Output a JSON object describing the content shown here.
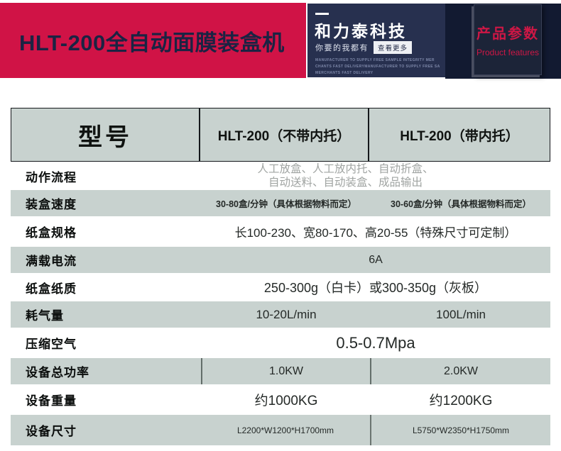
{
  "banner": {
    "title": "HLT-200全自动面膜装盒机",
    "brand": {
      "name": "和力泰科技",
      "tagline": "你要的我都有",
      "more_button": "查看更多",
      "fine_print": [
        "MANUFACTURER TO SUPPLY FREE SAMPLE INTEGRITY MER",
        "CHANTS FAST DELIVERYMANUFACTURER TO SUPPLY FREE SAMPLE INTEGRIT",
        "MERCHANTS FAST DELIVERY"
      ]
    },
    "badge": {
      "title": "产品参数",
      "subtitle": "Product features"
    }
  },
  "colors": {
    "accent_red": "#d01346",
    "navy_mid": "#27304f",
    "navy_dark": "#121a31",
    "table_gray": "#c8d2cf",
    "muted_text": "#a0a4a2"
  },
  "table": {
    "header": {
      "label": "型号",
      "col1": "HLT-200（不带内托）",
      "col2": "HLT-200（带内托）"
    },
    "rows": [
      {
        "label": "动作流程",
        "value_lines": [
          "人工放盒、人工放内托、自动折盒、",
          "自动送料、自动装盒、成品输出"
        ]
      },
      {
        "label": "装盒速度",
        "values": [
          "30-80盒/分钟（具体根据物料而定）",
          "30-60盒/分钟（具体根据物料而定）"
        ]
      },
      {
        "label": "纸盒规格",
        "span": "长100-230、宽80-170、高20-55（特殊尺寸可定制）"
      },
      {
        "label": "满载电流",
        "span": "6A"
      },
      {
        "label": "纸盒纸质",
        "span": "250-300g（白卡）或300-350g（灰板）"
      },
      {
        "label": "耗气量",
        "values": [
          "10-20L/min",
          "100L/min"
        ]
      },
      {
        "label": "压缩空气",
        "span": "0.5-0.7Mpa"
      },
      {
        "label": "设备总功率",
        "values": [
          "1.0KW",
          "2.0KW"
        ]
      },
      {
        "label": "设备重量",
        "values": [
          "约1000KG",
          "约1200KG"
        ]
      },
      {
        "label": "设备尺寸",
        "values": [
          "L2200*W1200*H1700mm",
          "L5750*W2350*H1750mm"
        ]
      }
    ]
  }
}
